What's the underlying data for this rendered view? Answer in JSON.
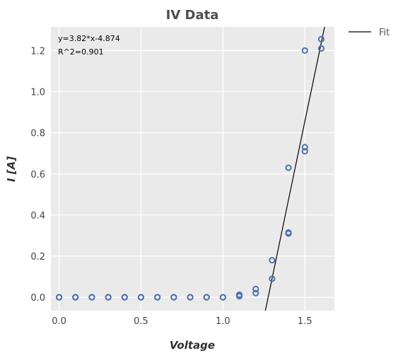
{
  "chart_data": {
    "type": "scatter",
    "title": "IV Data",
    "xlabel": "Voltage",
    "ylabel": "I [A]",
    "xlim": [
      -0.05,
      1.68
    ],
    "ylim": [
      -0.065,
      1.315
    ],
    "xticks": [
      0.0,
      0.5,
      1.0,
      1.5
    ],
    "xtick_labels": [
      "0.0",
      "0.5",
      "1.0",
      "1.5"
    ],
    "yticks": [
      0.0,
      0.2,
      0.4,
      0.6,
      0.8,
      1.0,
      1.2
    ],
    "ytick_labels": [
      "0.0",
      "0.2",
      "0.4",
      "0.6",
      "0.8",
      "1.0",
      "1.2"
    ],
    "grid": true,
    "legend_position": "outside-top-right",
    "annotations": [
      "y=3.82*x-4.874",
      "R^2=0.901"
    ],
    "series": [
      {
        "kind": "markers",
        "marker": "open-circle",
        "color": "#4c72b0",
        "x": [
          0.0,
          0.0,
          0.1,
          0.1,
          0.2,
          0.2,
          0.3,
          0.3,
          0.4,
          0.4,
          0.5,
          0.5,
          0.6,
          0.6,
          0.7,
          0.7,
          0.8,
          0.8,
          0.9,
          0.9,
          1.0,
          1.0,
          1.1,
          1.1,
          1.2,
          1.2,
          1.3,
          1.3,
          1.4,
          1.4,
          1.4,
          1.5,
          1.5,
          1.5,
          1.6,
          1.6
        ],
        "y": [
          0.0,
          0.0,
          0.0,
          0.0,
          0.0,
          0.0,
          0.0,
          0.0,
          0.0,
          0.0,
          0.0,
          0.0,
          0.0,
          0.0,
          0.0,
          0.0,
          0.0,
          0.0,
          0.0,
          0.0,
          0.0,
          0.0,
          0.005,
          0.012,
          0.02,
          0.04,
          0.09,
          0.18,
          0.31,
          0.315,
          0.63,
          0.71,
          0.73,
          1.2,
          1.21,
          1.255
        ]
      },
      {
        "name": "Fit",
        "kind": "line",
        "color": "#000000",
        "slope": 3.82,
        "intercept": -4.874
      }
    ]
  }
}
